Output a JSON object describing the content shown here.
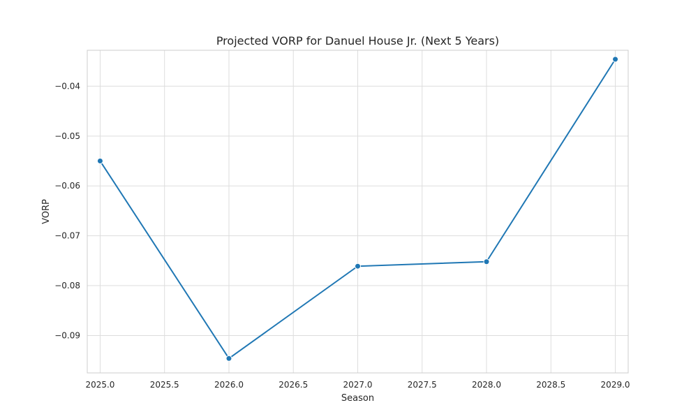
{
  "chart_data": {
    "type": "line",
    "title": "Projected VORP for Danuel House Jr. (Next 5 Years)",
    "xlabel": "Season",
    "ylabel": "VORP",
    "xlim": [
      2024.9,
      2029.1
    ],
    "ylim": [
      -0.0975,
      -0.0328
    ],
    "x_ticks": [
      2025.0,
      2025.5,
      2026.0,
      2026.5,
      2027.0,
      2027.5,
      2028.0,
      2028.5,
      2029.0
    ],
    "x_tick_labels": [
      "2025.0",
      "2025.5",
      "2026.0",
      "2026.5",
      "2027.0",
      "2027.5",
      "2028.0",
      "2028.5",
      "2029.0"
    ],
    "y_ticks": [
      -0.09,
      -0.08,
      -0.07,
      -0.06,
      -0.05,
      -0.04
    ],
    "y_tick_labels": [
      "−0.09",
      "−0.08",
      "−0.07",
      "−0.06",
      "−0.05",
      "−0.04"
    ],
    "grid": true,
    "series": [
      {
        "x": [
          2025,
          2026,
          2027,
          2028,
          2029
        ],
        "y": [
          -0.055,
          -0.0946,
          -0.0761,
          -0.0752,
          -0.0346
        ],
        "color": "#1f77b4",
        "marker": "circle"
      }
    ]
  }
}
